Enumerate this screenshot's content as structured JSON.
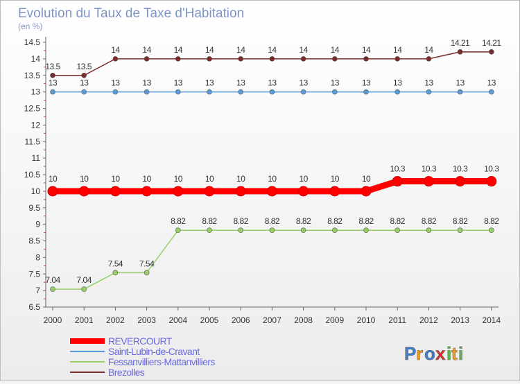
{
  "chart_data": {
    "type": "line",
    "title": "Evolution du Taux de Taxe d'Habitation",
    "subtitle": "(en %)",
    "ylim": [
      6.5,
      14.5
    ],
    "yticks": [
      "6.5",
      "7",
      "7.5",
      "8",
      "8.5",
      "9",
      "9.5",
      "10",
      "10.5",
      "11",
      "11.5",
      "12",
      "12.5",
      "13",
      "13.5",
      "14",
      "14.5"
    ],
    "x": [
      "2000",
      "2001",
      "2002",
      "2003",
      "2004",
      "2005",
      "2006",
      "2007",
      "2008",
      "2009",
      "2010",
      "2011",
      "2012",
      "2013",
      "2014"
    ],
    "series": [
      {
        "name": "REVERCOURT",
        "color": "#ff0000",
        "values": [
          10,
          10,
          10,
          10,
          10,
          10,
          10,
          10,
          10,
          10,
          10,
          10.3,
          10.3,
          10.3,
          10.3
        ],
        "labels": [
          "10",
          "10",
          "10",
          "10",
          "10",
          "10",
          "10",
          "10",
          "10",
          "10",
          "10",
          "10.3",
          "10.3",
          "10.3",
          "10.3"
        ]
      },
      {
        "name": "Saint-Lubin-de-Cravant",
        "color": "#5b9bd5",
        "values": [
          13,
          13,
          13,
          13,
          13,
          13,
          13,
          13,
          13,
          13,
          13,
          13,
          13,
          13,
          13
        ],
        "labels": [
          "13",
          "13",
          "13",
          "13",
          "13",
          "13",
          "13",
          "13",
          "13",
          "13",
          "13",
          "13",
          "13",
          "13",
          "13"
        ]
      },
      {
        "name": "Fessanvilliers-Mattanvilliers",
        "color": "#99d066",
        "values": [
          7.04,
          7.04,
          7.54,
          7.54,
          8.82,
          8.82,
          8.82,
          8.82,
          8.82,
          8.82,
          8.82,
          8.82,
          8.82,
          8.82,
          8.82
        ],
        "labels": [
          "7.04",
          "7.04",
          "7.54",
          "7.54",
          "8.82",
          "8.82",
          "8.82",
          "8.82",
          "8.82",
          "8.82",
          "8.82",
          "8.82",
          "8.82",
          "8.82",
          "8.82"
        ]
      },
      {
        "name": "Brezolles",
        "color": "#7a2a2a",
        "values": [
          13.5,
          13.5,
          14,
          14,
          14,
          14,
          14,
          14,
          14,
          14,
          14,
          14,
          14,
          14.21,
          14.21
        ],
        "labels": [
          "13.5",
          "13.5",
          "14",
          "14",
          "14",
          "14",
          "14",
          "14",
          "14",
          "14",
          "14",
          "14",
          "14",
          "14.21",
          "14.21"
        ]
      }
    ]
  },
  "brand": {
    "letters": [
      "P",
      "r",
      "o",
      "x",
      "i",
      "t",
      "i"
    ],
    "colors": [
      "#3d7fd1",
      "#f39c1f",
      "#3d7fd1",
      "#d9312b",
      "#58b947",
      "#f39c1f",
      "#58b947"
    ]
  }
}
